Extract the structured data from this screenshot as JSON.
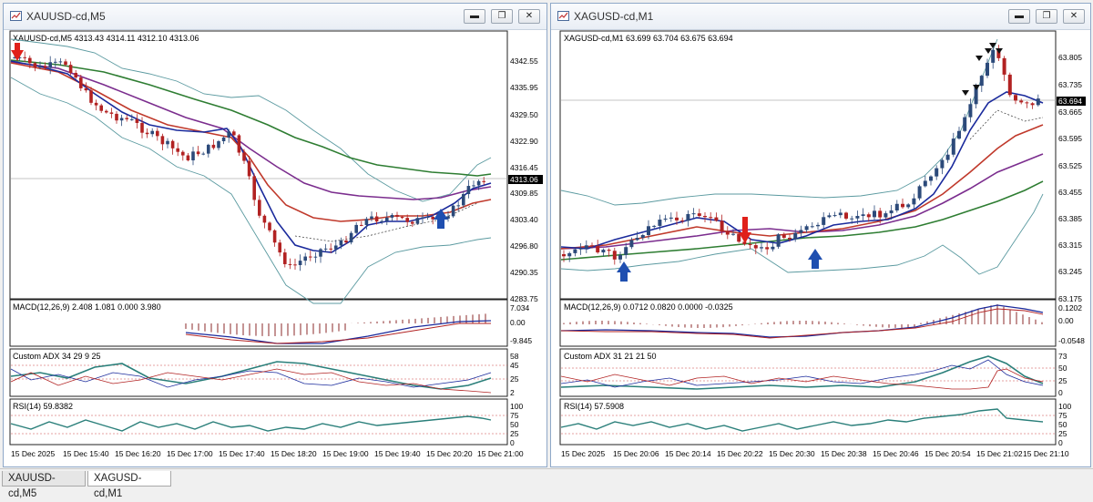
{
  "windows": [
    {
      "title": "XAUUSD-cd,M5",
      "header": "XAUUSD-cd,M5  4313.43 4314.11 4312.10 4313.06",
      "price_labels": [
        "4342.55",
        "4335.95",
        "4329.50",
        "4322.90",
        "4316.45",
        "4309.85",
        "4303.40",
        "4296.80",
        "4290.35",
        "4283.75"
      ],
      "current_price": "4313.06",
      "macd": {
        "label": "MACD(12,26,9) 2.408 1.081 0.000 3.980",
        "scale": [
          "7.034",
          "0.00",
          "-9.845"
        ]
      },
      "adx": {
        "label": "Custom ADX 34 29 9 25",
        "scale": [
          "58",
          "45",
          "25",
          "2"
        ]
      },
      "rsi": {
        "label": "RSI(14) 59.8382",
        "scale": [
          "100",
          "75",
          "50",
          "25",
          "0"
        ]
      },
      "time_labels": [
        "15 Dec 2025",
        "15 Dec 15:40",
        "15 Dec 16:20",
        "15 Dec 17:00",
        "15 Dec 17:40",
        "15 Dec 18:20",
        "15 Dec 19:00",
        "15 Dec 19:40",
        "15 Dec 20:20",
        "15 Dec 21:00"
      ]
    },
    {
      "title": "XAGUSD-cd,M1",
      "header": "XAGUSD-cd,M1  63.699 63.704 63.675 63.694",
      "price_labels": [
        "63.805",
        "63.735",
        "63.665",
        "63.595",
        "63.525",
        "63.455",
        "63.385",
        "63.315",
        "63.245",
        "63.175"
      ],
      "current_price": "63.694",
      "macd": {
        "label": "MACD(12,26,9) 0.0712 0.0820 0.0000 -0.0325",
        "scale": [
          "0.1202",
          "0.00",
          "-0.0548"
        ]
      },
      "adx": {
        "label": "Custom ADX 31 21 21 50",
        "scale": [
          "73",
          "50",
          "25",
          "0"
        ]
      },
      "rsi": {
        "label": "RSI(14) 57.5908",
        "scale": [
          "100",
          "75",
          "50",
          "25",
          "0"
        ]
      },
      "time_labels": [
        "15 Dec 2025",
        "15 Dec 20:06",
        "15 Dec 20:14",
        "15 Dec 20:22",
        "15 Dec 20:30",
        "15 Dec 20:38",
        "15 Dec 20:46",
        "15 Dec 20:54",
        "15 Dec 21:02",
        "15 Dec 21:10"
      ]
    }
  ],
  "tabs": [
    {
      "label": "XAUUSD-cd,M5",
      "active": false
    },
    {
      "label": "XAGUSD-cd,M1",
      "active": true
    }
  ],
  "window_buttons": {
    "minimize": "▬",
    "restore": "❐",
    "close": "✕"
  },
  "colors": {
    "up_candle": "#2c4a7a",
    "down_candle": "#b22222",
    "ma_blue": "#1a2a9c",
    "ma_red": "#c0392b",
    "ma_purple": "#7b2d8e",
    "ma_green": "#2e7d32",
    "band": "#5b9aa0",
    "arrow_up": "#1f4fb0",
    "arrow_down": "#e0201a"
  }
}
